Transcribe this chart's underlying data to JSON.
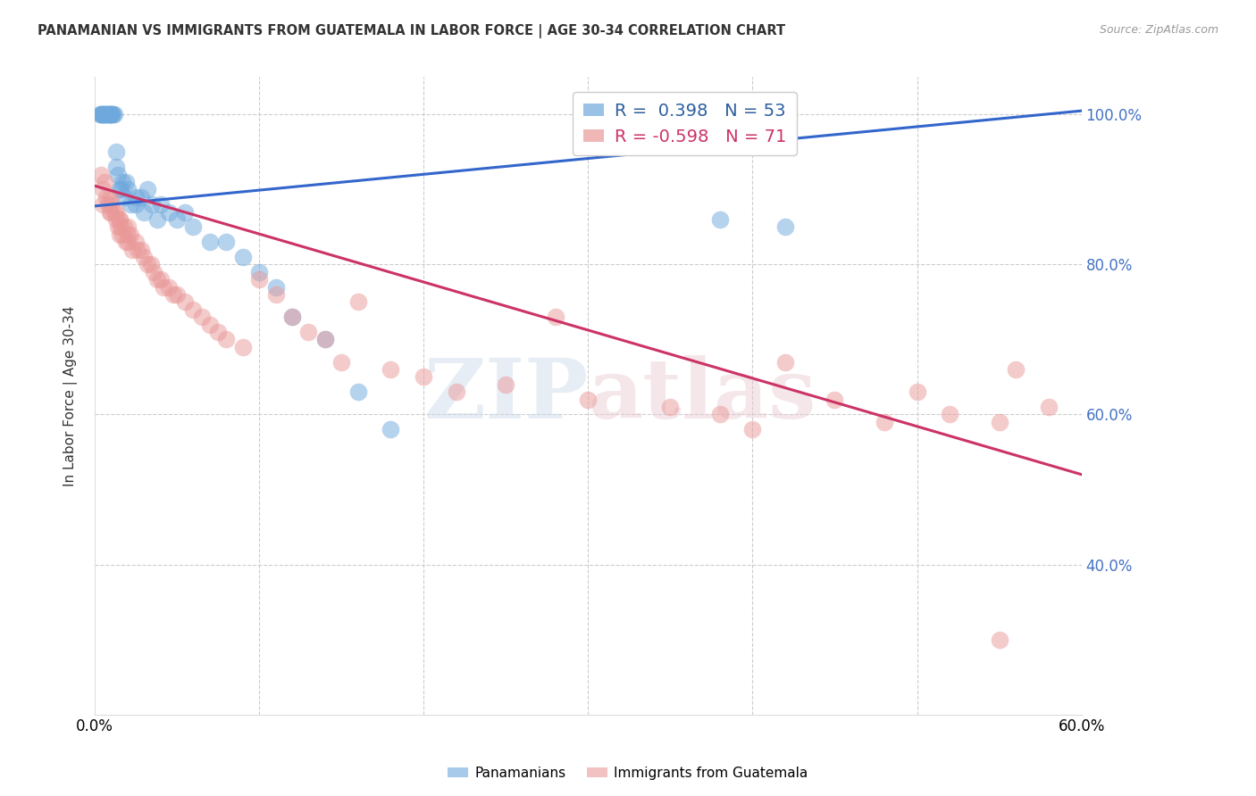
{
  "title": "PANAMANIAN VS IMMIGRANTS FROM GUATEMALA IN LABOR FORCE | AGE 30-34 CORRELATION CHART",
  "source": "Source: ZipAtlas.com",
  "ylabel": "In Labor Force | Age 30-34",
  "xlim": [
    0.0,
    0.6
  ],
  "ylim": [
    0.2,
    1.05
  ],
  "blue_R": 0.398,
  "blue_N": 53,
  "pink_R": -0.598,
  "pink_N": 71,
  "blue_color": "#6fa8dc",
  "pink_color": "#ea9999",
  "blue_line_color": "#3366cc",
  "pink_line_color": "#cc3366",
  "watermark_zip": "ZIP",
  "watermark_atlas": "atlas",
  "legend_labels": [
    "Panamanians",
    "Immigrants from Guatemala"
  ],
  "blue_line_x0": 0.0,
  "blue_line_y0": 0.878,
  "blue_line_x1": 0.6,
  "blue_line_y1": 1.005,
  "pink_line_x0": 0.0,
  "pink_line_y0": 0.905,
  "pink_line_x1": 0.6,
  "pink_line_y1": 0.52,
  "blue_scatter_x": [
    0.003,
    0.004,
    0.004,
    0.005,
    0.005,
    0.005,
    0.006,
    0.006,
    0.007,
    0.007,
    0.008,
    0.008,
    0.009,
    0.009,
    0.009,
    0.01,
    0.01,
    0.011,
    0.011,
    0.012,
    0.013,
    0.013,
    0.014,
    0.015,
    0.016,
    0.017,
    0.018,
    0.019,
    0.02,
    0.022,
    0.025,
    0.028,
    0.032,
    0.035,
    0.04,
    0.045,
    0.05,
    0.055,
    0.06,
    0.07,
    0.08,
    0.09,
    0.1,
    0.11,
    0.12,
    0.14,
    0.16,
    0.18,
    0.025,
    0.03,
    0.038,
    0.38,
    0.42
  ],
  "blue_scatter_y": [
    1.0,
    1.0,
    1.0,
    1.0,
    1.0,
    1.0,
    1.0,
    1.0,
    1.0,
    1.0,
    1.0,
    1.0,
    1.0,
    1.0,
    1.0,
    1.0,
    1.0,
    1.0,
    1.0,
    1.0,
    0.95,
    0.93,
    0.92,
    0.9,
    0.9,
    0.91,
    0.89,
    0.91,
    0.9,
    0.88,
    0.89,
    0.89,
    0.9,
    0.88,
    0.88,
    0.87,
    0.86,
    0.87,
    0.85,
    0.83,
    0.83,
    0.81,
    0.79,
    0.77,
    0.73,
    0.7,
    0.63,
    0.58,
    0.88,
    0.87,
    0.86,
    0.86,
    0.85
  ],
  "pink_scatter_x": [
    0.004,
    0.005,
    0.005,
    0.006,
    0.007,
    0.008,
    0.009,
    0.01,
    0.01,
    0.012,
    0.013,
    0.014,
    0.015,
    0.015,
    0.016,
    0.017,
    0.018,
    0.019,
    0.02,
    0.02,
    0.022,
    0.023,
    0.025,
    0.026,
    0.028,
    0.03,
    0.032,
    0.034,
    0.036,
    0.038,
    0.04,
    0.042,
    0.045,
    0.048,
    0.05,
    0.055,
    0.06,
    0.065,
    0.07,
    0.075,
    0.08,
    0.09,
    0.1,
    0.11,
    0.12,
    0.13,
    0.14,
    0.15,
    0.16,
    0.18,
    0.2,
    0.22,
    0.25,
    0.28,
    0.3,
    0.35,
    0.38,
    0.4,
    0.42,
    0.45,
    0.48,
    0.5,
    0.52,
    0.55,
    0.56,
    0.58,
    0.01,
    0.013,
    0.015,
    0.02,
    0.55
  ],
  "pink_scatter_y": [
    0.92,
    0.9,
    0.88,
    0.91,
    0.89,
    0.88,
    0.87,
    0.89,
    0.87,
    0.87,
    0.86,
    0.85,
    0.86,
    0.84,
    0.85,
    0.84,
    0.85,
    0.83,
    0.85,
    0.83,
    0.84,
    0.82,
    0.83,
    0.82,
    0.82,
    0.81,
    0.8,
    0.8,
    0.79,
    0.78,
    0.78,
    0.77,
    0.77,
    0.76,
    0.76,
    0.75,
    0.74,
    0.73,
    0.72,
    0.71,
    0.7,
    0.69,
    0.78,
    0.76,
    0.73,
    0.71,
    0.7,
    0.67,
    0.75,
    0.66,
    0.65,
    0.63,
    0.64,
    0.73,
    0.62,
    0.61,
    0.6,
    0.58,
    0.67,
    0.62,
    0.59,
    0.63,
    0.6,
    0.59,
    0.66,
    0.61,
    0.88,
    0.87,
    0.86,
    0.84,
    0.3
  ]
}
